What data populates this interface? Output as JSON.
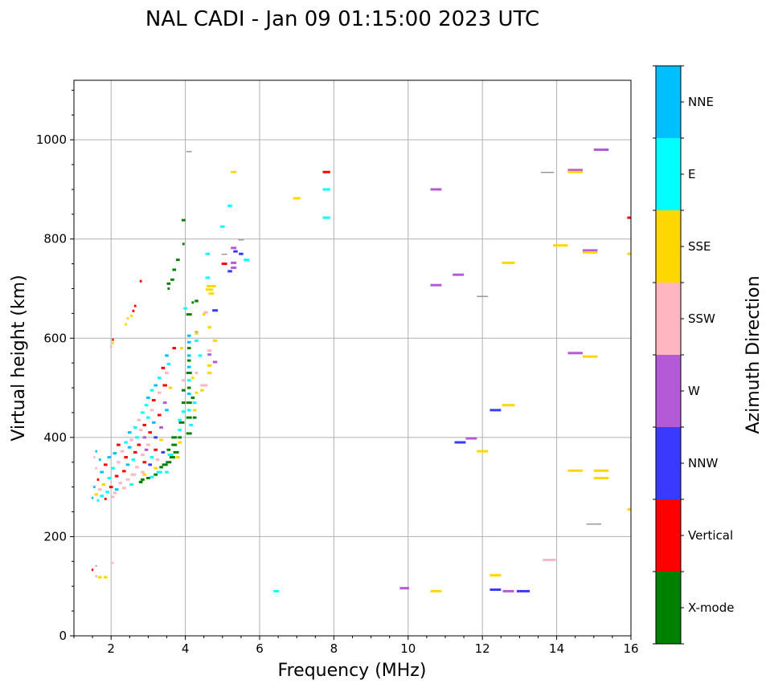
{
  "chart_data": {
    "type": "scatter",
    "title": "NAL CADI - Jan 09 01:15:00 2023 UTC",
    "xlabel": "Frequency (MHz)",
    "ylabel": "Virtual height (km)",
    "xlim": [
      1,
      16
    ],
    "ylim": [
      0,
      1120
    ],
    "xticks": [
      "2",
      "4",
      "6",
      "8",
      "10",
      "12",
      "14",
      "16"
    ],
    "xtick_values": [
      2,
      4,
      6,
      8,
      10,
      12,
      14,
      16
    ],
    "yticks": [
      "0",
      "200",
      "400",
      "600",
      "800",
      "1000"
    ],
    "ytick_values": [
      0,
      200,
      400,
      600,
      800,
      1000
    ],
    "grid": true,
    "colorbar": {
      "label": "Azimuth Direction",
      "categories": [
        "X-mode",
        "Vertical",
        "NNW",
        "W",
        "SSW",
        "SSE",
        "E",
        "NNE"
      ],
      "colors": [
        "#008000",
        "#ff0000",
        "#3a3aff",
        "#b55ad6",
        "#ffb6c1",
        "#ffd700",
        "#00ffff",
        "#00bfff"
      ]
    },
    "other_color": "#999999",
    "point_format": "[frequency MHz, virtual height km, category index (8 = unlabelled grey), frequency span MHz]",
    "points": [
      [
        4.1,
        975,
        8,
        0.15
      ],
      [
        5.3,
        935,
        5,
        0.15
      ],
      [
        7.8,
        935,
        1,
        0.2
      ],
      [
        7.0,
        882,
        5,
        0.2
      ],
      [
        7.8,
        900,
        6,
        0.2
      ],
      [
        7.8,
        843,
        6,
        0.2
      ],
      [
        5.2,
        867,
        6,
        0.12
      ],
      [
        5.0,
        825,
        6,
        0.12
      ],
      [
        10.75,
        900,
        3,
        0.3
      ],
      [
        10.75,
        707,
        3,
        0.3
      ],
      [
        11.35,
        728,
        3,
        0.3
      ],
      [
        12.0,
        683,
        8,
        0.3
      ],
      [
        12.7,
        752,
        5,
        0.35
      ],
      [
        13.75,
        933,
        8,
        0.35
      ],
      [
        14.5,
        939,
        3,
        0.4
      ],
      [
        14.5,
        935,
        5,
        0.4
      ],
      [
        15.2,
        980,
        3,
        0.4
      ],
      [
        14.1,
        787,
        5,
        0.4
      ],
      [
        14.9,
        777,
        3,
        0.4
      ],
      [
        14.9,
        773,
        5,
        0.4
      ],
      [
        15.98,
        843,
        1,
        0.1
      ],
      [
        15.98,
        770,
        5,
        0.1
      ],
      [
        14.5,
        570,
        3,
        0.4
      ],
      [
        14.9,
        563,
        5,
        0.4
      ],
      [
        12.35,
        455,
        2,
        0.3
      ],
      [
        12.7,
        465,
        5,
        0.35
      ],
      [
        11.4,
        390,
        2,
        0.3
      ],
      [
        11.7,
        398,
        3,
        0.3
      ],
      [
        12.0,
        372,
        5,
        0.3
      ],
      [
        14.5,
        333,
        5,
        0.4
      ],
      [
        15.2,
        333,
        5,
        0.4
      ],
      [
        15.2,
        318,
        5,
        0.4
      ],
      [
        15.0,
        224,
        8,
        0.4
      ],
      [
        15.98,
        255,
        5,
        0.1
      ],
      [
        13.8,
        153,
        4,
        0.35
      ],
      [
        12.35,
        122,
        5,
        0.3
      ],
      [
        12.35,
        93,
        2,
        0.3
      ],
      [
        12.7,
        90,
        3,
        0.3
      ],
      [
        13.1,
        90,
        2,
        0.35
      ],
      [
        9.9,
        96,
        3,
        0.25
      ],
      [
        10.75,
        90,
        5,
        0.3
      ],
      [
        6.45,
        90,
        6,
        0.15
      ],
      [
        1.5,
        133,
        1,
        0.05
      ],
      [
        1.6,
        120,
        4,
        0.06
      ],
      [
        1.7,
        118,
        5,
        0.1
      ],
      [
        1.85,
        118,
        5,
        0.1
      ],
      [
        2.05,
        147,
        4,
        0.05
      ],
      [
        1.6,
        140,
        8,
        0.05
      ],
      [
        4.6,
        770,
        6,
        0.12
      ],
      [
        4.6,
        722,
        6,
        0.12
      ],
      [
        4.7,
        705,
        5,
        0.25
      ],
      [
        4.65,
        698,
        5,
        0.2
      ],
      [
        4.7,
        690,
        5,
        0.15
      ],
      [
        4.8,
        656,
        2,
        0.15
      ],
      [
        4.55,
        652,
        4,
        0.12
      ],
      [
        4.5,
        648,
        5,
        0.08
      ],
      [
        4.3,
        610,
        5,
        0.1
      ],
      [
        4.65,
        622,
        5,
        0.1
      ],
      [
        4.3,
        595,
        6,
        0.1
      ],
      [
        4.8,
        595,
        5,
        0.12
      ],
      [
        4.65,
        575,
        4,
        0.12
      ],
      [
        4.65,
        567,
        3,
        0.1
      ],
      [
        4.8,
        552,
        3,
        0.12
      ],
      [
        4.65,
        545,
        5,
        0.12
      ],
      [
        4.65,
        530,
        5,
        0.12
      ],
      [
        4.4,
        565,
        6,
        0.1
      ],
      [
        4.5,
        505,
        4,
        0.2
      ],
      [
        4.45,
        495,
        5,
        0.1
      ],
      [
        5.3,
        782,
        3,
        0.15
      ],
      [
        5.35,
        775,
        2,
        0.12
      ],
      [
        5.5,
        770,
        2,
        0.12
      ],
      [
        5.65,
        758,
        6,
        0.15
      ],
      [
        5.3,
        752,
        3,
        0.15
      ],
      [
        5.3,
        742,
        3,
        0.15
      ],
      [
        5.2,
        735,
        2,
        0.12
      ],
      [
        5.05,
        750,
        1,
        0.15
      ],
      [
        5.05,
        768,
        8,
        0.15
      ],
      [
        5.5,
        797,
        8,
        0.15
      ],
      [
        4.3,
        675,
        0,
        0.1
      ],
      [
        4.2,
        672,
        0,
        0.06
      ],
      [
        3.95,
        838,
        0,
        0.1
      ],
      [
        3.8,
        758,
        0,
        0.1
      ],
      [
        3.7,
        738,
        0,
        0.1
      ],
      [
        3.65,
        718,
        0,
        0.1
      ],
      [
        3.55,
        710,
        0,
        0.1
      ],
      [
        3.55,
        700,
        0,
        0.06
      ],
      [
        3.95,
        790,
        0,
        0.06
      ],
      [
        4.1,
        648,
        0,
        0.15
      ],
      [
        4.0,
        660,
        6,
        0.1
      ],
      [
        4.3,
        612,
        8,
        0.08
      ],
      [
        2.8,
        715,
        1,
        0.06
      ],
      [
        2.65,
        665,
        1,
        0.06
      ],
      [
        2.6,
        655,
        1,
        0.06
      ],
      [
        2.55,
        645,
        5,
        0.06
      ],
      [
        2.45,
        640,
        5,
        0.06
      ],
      [
        2.4,
        628,
        5,
        0.06
      ],
      [
        2.05,
        597,
        1,
        0.05
      ],
      [
        2.05,
        590,
        5,
        0.05
      ],
      [
        2.0,
        583,
        4,
        0.06
      ],
      [
        4.1,
        605,
        7,
        0.1
      ],
      [
        4.1,
        592,
        7,
        0.1
      ],
      [
        4.1,
        580,
        0,
        0.1
      ],
      [
        4.1,
        565,
        7,
        0.1
      ],
      [
        4.1,
        555,
        0,
        0.1
      ],
      [
        4.1,
        542,
        7,
        0.1
      ],
      [
        4.1,
        530,
        0,
        0.15
      ],
      [
        4.1,
        515,
        6,
        0.1
      ],
      [
        4.1,
        500,
        0,
        0.1
      ],
      [
        4.1,
        488,
        7,
        0.1
      ],
      [
        4.1,
        470,
        0,
        0.15
      ],
      [
        4.1,
        455,
        6,
        0.1
      ],
      [
        4.1,
        440,
        0,
        0.15
      ],
      [
        4.15,
        425,
        6,
        0.1
      ],
      [
        4.1,
        408,
        0,
        0.15
      ],
      [
        4.2,
        480,
        0,
        0.1
      ],
      [
        4.25,
        470,
        6,
        0.1
      ],
      [
        4.25,
        455,
        5,
        0.1
      ],
      [
        4.25,
        440,
        0,
        0.1
      ],
      [
        4.3,
        530,
        4,
        0.08
      ],
      [
        4.3,
        490,
        5,
        0.08
      ],
      [
        4.2,
        520,
        5,
        0.08
      ],
      [
        3.95,
        495,
        0,
        0.1
      ],
      [
        3.95,
        470,
        0,
        0.1
      ],
      [
        3.95,
        452,
        6,
        0.1
      ],
      [
        3.9,
        430,
        0,
        0.15
      ],
      [
        3.85,
        415,
        6,
        0.1
      ],
      [
        3.85,
        400,
        0,
        0.1
      ],
      [
        3.85,
        390,
        5,
        0.1
      ],
      [
        3.7,
        400,
        0,
        0.15
      ],
      [
        3.7,
        385,
        0,
        0.15
      ],
      [
        3.75,
        370,
        0,
        0.15
      ],
      [
        3.65,
        360,
        0,
        0.15
      ],
      [
        3.55,
        350,
        0,
        0.15
      ],
      [
        3.45,
        345,
        0,
        0.15
      ],
      [
        3.35,
        340,
        0,
        0.1
      ],
      [
        3.3,
        330,
        6,
        0.15
      ],
      [
        3.2,
        325,
        0,
        0.1
      ],
      [
        3.1,
        320,
        6,
        0.1
      ],
      [
        3.0,
        318,
        0,
        0.1
      ],
      [
        2.85,
        315,
        0,
        0.1
      ],
      [
        2.9,
        325,
        5,
        0.1
      ],
      [
        3.8,
        360,
        5,
        0.1
      ],
      [
        3.6,
        365,
        6,
        0.15
      ],
      [
        3.55,
        375,
        0,
        0.1
      ],
      [
        3.5,
        330,
        6,
        0.1
      ],
      [
        3.85,
        435,
        6,
        0.1
      ],
      [
        3.95,
        515,
        4,
        0.1
      ],
      [
        3.9,
        580,
        5,
        0.08
      ],
      [
        3.7,
        580,
        1,
        0.1
      ],
      [
        3.5,
        565,
        7,
        0.1
      ],
      [
        3.55,
        548,
        6,
        0.1
      ],
      [
        3.4,
        540,
        1,
        0.1
      ],
      [
        3.5,
        530,
        4,
        0.1
      ],
      [
        3.3,
        520,
        6,
        0.1
      ],
      [
        3.45,
        505,
        1,
        0.12
      ],
      [
        3.6,
        500,
        5,
        0.1
      ],
      [
        3.2,
        505,
        7,
        0.1
      ],
      [
        3.1,
        495,
        6,
        0.1
      ],
      [
        3.3,
        490,
        4,
        0.1
      ],
      [
        3.0,
        480,
        7,
        0.1
      ],
      [
        3.15,
        475,
        1,
        0.1
      ],
      [
        3.45,
        470,
        3,
        0.1
      ],
      [
        3.5,
        455,
        7,
        0.1
      ],
      [
        2.95,
        465,
        6,
        0.1
      ],
      [
        3.1,
        455,
        4,
        0.1
      ],
      [
        2.85,
        450,
        6,
        0.1
      ],
      [
        3.3,
        445,
        1,
        0.1
      ],
      [
        3.0,
        440,
        6,
        0.1
      ],
      [
        2.75,
        435,
        4,
        0.1
      ],
      [
        3.15,
        430,
        7,
        0.1
      ],
      [
        2.9,
        425,
        1,
        0.1
      ],
      [
        2.65,
        420,
        6,
        0.1
      ],
      [
        2.8,
        415,
        4,
        0.1
      ],
      [
        3.35,
        420,
        3,
        0.1
      ],
      [
        3.05,
        410,
        1,
        0.1
      ],
      [
        2.5,
        410,
        7,
        0.1
      ],
      [
        2.7,
        400,
        6,
        0.1
      ],
      [
        2.9,
        400,
        3,
        0.1
      ],
      [
        3.2,
        400,
        2,
        0.1
      ],
      [
        2.55,
        395,
        4,
        0.1
      ],
      [
        3.35,
        395,
        5,
        0.1
      ],
      [
        2.4,
        390,
        6,
        0.1
      ],
      [
        2.75,
        385,
        1,
        0.1
      ],
      [
        3.0,
        385,
        4,
        0.1
      ],
      [
        2.2,
        385,
        1,
        0.1
      ],
      [
        2.5,
        380,
        7,
        0.1
      ],
      [
        2.95,
        375,
        3,
        0.1
      ],
      [
        3.2,
        375,
        1,
        0.1
      ],
      [
        2.3,
        372,
        4,
        0.1
      ],
      [
        2.65,
        370,
        1,
        0.1
      ],
      [
        3.4,
        370,
        2,
        0.1
      ],
      [
        2.1,
        368,
        7,
        0.1
      ],
      [
        2.85,
        365,
        4,
        0.1
      ],
      [
        3.1,
        360,
        6,
        0.1
      ],
      [
        2.4,
        360,
        1,
        0.1
      ],
      [
        1.95,
        360,
        7,
        0.1
      ],
      [
        2.6,
        355,
        6,
        0.1
      ],
      [
        3.25,
        355,
        4,
        0.1
      ],
      [
        1.7,
        355,
        7,
        0.06
      ],
      [
        2.2,
        350,
        4,
        0.1
      ],
      [
        2.9,
        350,
        1,
        0.1
      ],
      [
        2.45,
        345,
        7,
        0.1
      ],
      [
        3.05,
        345,
        2,
        0.1
      ],
      [
        1.85,
        345,
        1,
        0.1
      ],
      [
        2.7,
        340,
        4,
        0.1
      ],
      [
        2.05,
        338,
        6,
        0.1
      ],
      [
        1.6,
        338,
        4,
        0.06
      ],
      [
        3.2,
        338,
        5,
        0.1
      ],
      [
        2.35,
        332,
        1,
        0.1
      ],
      [
        2.85,
        330,
        4,
        0.1
      ],
      [
        1.75,
        330,
        7,
        0.1
      ],
      [
        2.6,
        325,
        4,
        0.15
      ],
      [
        2.15,
        322,
        1,
        0.1
      ],
      [
        1.95,
        318,
        6,
        0.1
      ],
      [
        2.45,
        315,
        4,
        0.1
      ],
      [
        1.65,
        315,
        1,
        0.06
      ],
      [
        2.8,
        310,
        0,
        0.1
      ],
      [
        2.25,
        308,
        4,
        0.1
      ],
      [
        1.8,
        305,
        5,
        0.1
      ],
      [
        2.0,
        300,
        1,
        0.1
      ],
      [
        1.55,
        300,
        7,
        0.06
      ],
      [
        2.35,
        298,
        4,
        0.1
      ],
      [
        1.7,
        295,
        4,
        0.1
      ],
      [
        1.9,
        290,
        6,
        0.1
      ],
      [
        2.1,
        288,
        4,
        0.1
      ],
      [
        1.6,
        285,
        5,
        0.1
      ],
      [
        1.75,
        282,
        6,
        0.1
      ],
      [
        2.05,
        280,
        4,
        0.08
      ],
      [
        1.5,
        278,
        7,
        0.05
      ],
      [
        1.65,
        273,
        6,
        0.06
      ],
      [
        1.85,
        276,
        1,
        0.06
      ],
      [
        2.15,
        295,
        7,
        0.1
      ],
      [
        2.55,
        305,
        6,
        0.1
      ],
      [
        1.55,
        360,
        4,
        0.05
      ],
      [
        1.6,
        372,
        7,
        0.05
      ]
    ]
  }
}
